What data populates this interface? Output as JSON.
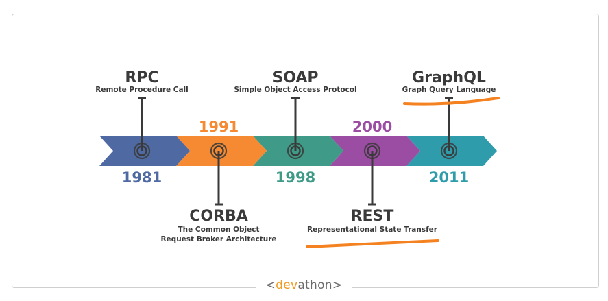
{
  "colors": {
    "rpc": "#4f6aa2",
    "corba": "#f58a32",
    "soap": "#3f9b87",
    "rest": "#9b4ca3",
    "graphql": "#2f9cab",
    "text": "#3a3a3a",
    "underline": "#f58220",
    "connector": "#3a3a3a"
  },
  "milestones": [
    {
      "id": "rpc",
      "year": "1981",
      "title": "RPC",
      "subtitle": [
        "Remote Procedure Call"
      ],
      "label_position": "above",
      "year_position": "below",
      "underlined": false
    },
    {
      "id": "corba",
      "year": "1991",
      "title": "CORBA",
      "subtitle": [
        "The Common Object",
        "Request Broker Architecture"
      ],
      "label_position": "below",
      "year_position": "above",
      "underlined": false
    },
    {
      "id": "soap",
      "year": "1998",
      "title": "SOAP",
      "subtitle": [
        "Simple Object Access Protocol"
      ],
      "label_position": "above",
      "year_position": "below",
      "underlined": false
    },
    {
      "id": "rest",
      "year": "2000",
      "title": "REST",
      "subtitle": [
        "Representational State Transfer"
      ],
      "label_position": "below",
      "year_position": "above",
      "underlined": true
    },
    {
      "id": "graphql",
      "year": "2011",
      "title": "GraphQL",
      "subtitle": [
        "Graph Query Language"
      ],
      "label_position": "above",
      "year_position": "below",
      "underlined": true
    }
  ],
  "footer": {
    "open": "<",
    "accent": "dev",
    "rest": "athon",
    "close": ">"
  }
}
